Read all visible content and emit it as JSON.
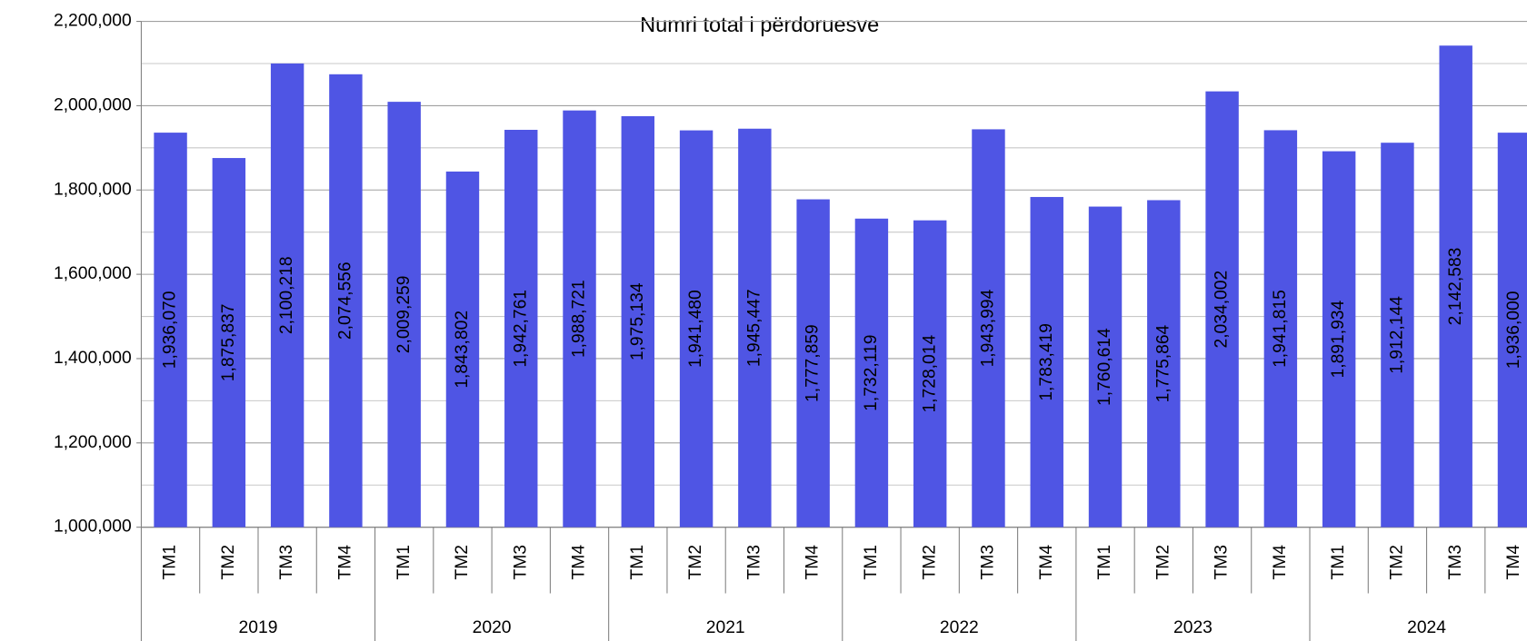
{
  "chart_data": {
    "type": "bar",
    "title": "Numri total i përdoruesve",
    "categories": [
      "TM1",
      "TM2",
      "TM3",
      "TM4",
      "TM1",
      "TM2",
      "TM3",
      "TM4",
      "TM1",
      "TM2",
      "TM3",
      "TM4",
      "TM1",
      "TM2",
      "TM3",
      "TM4",
      "TM1",
      "TM2",
      "TM3",
      "TM4",
      "TM1",
      "TM2",
      "TM3",
      "TM4"
    ],
    "groups": [
      "2019",
      "2020",
      "2021",
      "2022",
      "2023",
      "2024"
    ],
    "values": [
      1936070,
      1875837,
      2100218,
      2074556,
      2009259,
      1843802,
      1942761,
      1988721,
      1975134,
      1941480,
      1945447,
      1777859,
      1732119,
      1728014,
      1943994,
      1783419,
      1760614,
      1775864,
      2034002,
      1941815,
      1891934,
      1912144,
      2142583,
      1936000
    ],
    "value_labels": [
      "1,936,070",
      "1,875,837",
      "2,100,218",
      "2,074,556",
      "2,009,259",
      "1,843,802",
      "1,942,761",
      "1,988,721",
      "1,975,134",
      "1,941,480",
      "1,945,447",
      "1,777,859",
      "1,732,119",
      "1,728,014",
      "1,943,994",
      "1,783,419",
      "1,760,614",
      "1,775,864",
      "2,034,002",
      "1,941,815",
      "1,891,934",
      "1,912,144",
      "2,142,583",
      "1,936,000"
    ],
    "color": "#4f55e4",
    "ylim": [
      1000000,
      2200000
    ],
    "yticks": [
      {
        "value": 1000000,
        "label": "1,000,000"
      },
      {
        "value": 1200000,
        "label": "1,200,000"
      },
      {
        "value": 1400000,
        "label": "1,400,000"
      },
      {
        "value": 1600000,
        "label": "1,600,000"
      },
      {
        "value": 1800000,
        "label": "1,800,000"
      },
      {
        "value": 2000000,
        "label": "2,000,000"
      },
      {
        "value": 2200000,
        "label": "2,200,000"
      }
    ],
    "minor_yticks": [
      1100000,
      1300000,
      1500000,
      1700000,
      1900000,
      2100000
    ],
    "grid": true
  }
}
